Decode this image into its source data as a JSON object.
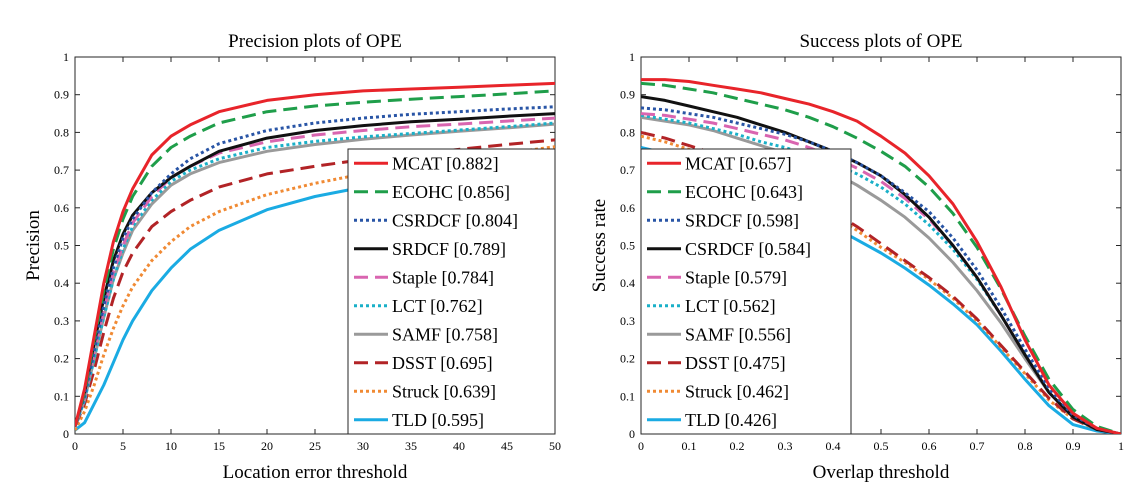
{
  "chart_data": [
    {
      "type": "line",
      "title": "Precision plots of OPE",
      "xlabel": "Location error threshold",
      "ylabel": "Precision",
      "xlim": [
        0,
        50
      ],
      "ylim": [
        0,
        1
      ],
      "xticks": [
        "0",
        "5",
        "10",
        "15",
        "20",
        "25",
        "30",
        "35",
        "40",
        "45",
        "50"
      ],
      "yticks": [
        "0",
        "0.1",
        "0.2",
        "0.3",
        "0.4",
        "0.5",
        "0.6",
        "0.7",
        "0.8",
        "0.9",
        "1"
      ],
      "legend_position": "bottom-right",
      "x": [
        0,
        1,
        2,
        3,
        4,
        5,
        6,
        8,
        10,
        12,
        15,
        20,
        25,
        30,
        35,
        40,
        45,
        50
      ],
      "series": [
        {
          "name": "MCAT",
          "label": "MCAT [0.882]",
          "color": "#e8242a",
          "dash": "solid",
          "values": [
            0.02,
            0.12,
            0.26,
            0.4,
            0.51,
            0.59,
            0.65,
            0.74,
            0.79,
            0.82,
            0.855,
            0.885,
            0.9,
            0.91,
            0.915,
            0.92,
            0.925,
            0.93
          ]
        },
        {
          "name": "ECOHC",
          "label": "ECOHC [0.856]",
          "color": "#1f9e4a",
          "dash": "dashed",
          "values": [
            0.02,
            0.11,
            0.25,
            0.38,
            0.49,
            0.57,
            0.63,
            0.71,
            0.76,
            0.79,
            0.825,
            0.855,
            0.87,
            0.88,
            0.888,
            0.895,
            0.902,
            0.91
          ]
        },
        {
          "name": "CSRDCF",
          "label": "CSRDCF [0.804]",
          "color": "#2955a6",
          "dash": "dotted",
          "values": [
            0.02,
            0.1,
            0.22,
            0.34,
            0.44,
            0.52,
            0.57,
            0.64,
            0.69,
            0.73,
            0.77,
            0.805,
            0.825,
            0.838,
            0.848,
            0.855,
            0.862,
            0.868
          ]
        },
        {
          "name": "SRDCF",
          "label": "SRDCF [0.789]",
          "color": "#111111",
          "dash": "solid",
          "values": [
            0.02,
            0.11,
            0.24,
            0.36,
            0.46,
            0.53,
            0.58,
            0.64,
            0.68,
            0.71,
            0.75,
            0.785,
            0.805,
            0.818,
            0.828,
            0.835,
            0.843,
            0.85
          ]
        },
        {
          "name": "Staple",
          "label": "Staple [0.784]",
          "color": "#d965b0",
          "dash": "dashed",
          "values": [
            0.02,
            0.1,
            0.22,
            0.33,
            0.43,
            0.5,
            0.56,
            0.63,
            0.68,
            0.71,
            0.745,
            0.775,
            0.793,
            0.805,
            0.815,
            0.822,
            0.83,
            0.838
          ]
        },
        {
          "name": "LCT",
          "label": "LCT [0.762]",
          "color": "#1ab0c8",
          "dash": "dotted",
          "values": [
            0.02,
            0.09,
            0.2,
            0.31,
            0.41,
            0.49,
            0.55,
            0.62,
            0.67,
            0.7,
            0.73,
            0.76,
            0.776,
            0.788,
            0.797,
            0.806,
            0.815,
            0.825
          ]
        },
        {
          "name": "SAMF",
          "label": "SAMF [0.758]",
          "color": "#9a9a9a",
          "dash": "solid",
          "values": [
            0.02,
            0.09,
            0.2,
            0.31,
            0.41,
            0.48,
            0.54,
            0.61,
            0.66,
            0.69,
            0.72,
            0.75,
            0.768,
            0.782,
            0.793,
            0.803,
            0.812,
            0.822
          ]
        },
        {
          "name": "DSST",
          "label": "DSST [0.695]",
          "color": "#b22326",
          "dash": "dashed",
          "values": [
            0.02,
            0.08,
            0.17,
            0.27,
            0.36,
            0.43,
            0.48,
            0.55,
            0.59,
            0.62,
            0.655,
            0.69,
            0.71,
            0.728,
            0.742,
            0.755,
            0.768,
            0.78
          ]
        },
        {
          "name": "Struck",
          "label": "Struck [0.639]",
          "color": "#f08a34",
          "dash": "dotted",
          "values": [
            0.01,
            0.06,
            0.13,
            0.21,
            0.28,
            0.34,
            0.39,
            0.46,
            0.51,
            0.55,
            0.59,
            0.635,
            0.665,
            0.69,
            0.71,
            0.728,
            0.745,
            0.762
          ]
        },
        {
          "name": "TLD",
          "label": "TLD [0.595]",
          "color": "#1aabe3",
          "dash": "solid",
          "values": [
            0.01,
            0.03,
            0.08,
            0.13,
            0.19,
            0.25,
            0.3,
            0.38,
            0.44,
            0.49,
            0.54,
            0.595,
            0.63,
            0.655,
            0.675,
            0.69,
            0.705,
            0.72
          ]
        }
      ]
    },
    {
      "type": "line",
      "title": "Success plots of OPE",
      "xlabel": "Overlap threshold",
      "ylabel": "Success rate",
      "xlim": [
        0,
        1
      ],
      "ylim": [
        0,
        1
      ],
      "xticks": [
        "0",
        "0.1",
        "0.2",
        "0.3",
        "0.4",
        "0.5",
        "0.6",
        "0.7",
        "0.8",
        "0.9",
        "1"
      ],
      "yticks": [
        "0",
        "0.1",
        "0.2",
        "0.3",
        "0.4",
        "0.5",
        "0.6",
        "0.7",
        "0.8",
        "0.9",
        "1"
      ],
      "legend_position": "bottom-left",
      "x": [
        0,
        0.05,
        0.1,
        0.15,
        0.2,
        0.25,
        0.3,
        0.35,
        0.4,
        0.45,
        0.5,
        0.55,
        0.6,
        0.65,
        0.7,
        0.75,
        0.8,
        0.85,
        0.9,
        0.95,
        1
      ],
      "series": [
        {
          "name": "MCAT",
          "label": "MCAT [0.657]",
          "color": "#e8242a",
          "dash": "solid",
          "values": [
            0.94,
            0.94,
            0.935,
            0.925,
            0.915,
            0.905,
            0.89,
            0.875,
            0.855,
            0.83,
            0.79,
            0.745,
            0.685,
            0.61,
            0.51,
            0.39,
            0.25,
            0.13,
            0.055,
            0.015,
            0.0
          ]
        },
        {
          "name": "ECOHC",
          "label": "ECOHC [0.643]",
          "color": "#1f9e4a",
          "dash": "dashed",
          "values": [
            0.93,
            0.925,
            0.915,
            0.905,
            0.89,
            0.875,
            0.86,
            0.84,
            0.815,
            0.785,
            0.75,
            0.71,
            0.655,
            0.585,
            0.495,
            0.385,
            0.26,
            0.145,
            0.065,
            0.02,
            0.0
          ]
        },
        {
          "name": "SRDCF",
          "label": "SRDCF [0.598]",
          "color": "#2955a6",
          "dash": "dotted",
          "values": [
            0.865,
            0.86,
            0.85,
            0.84,
            0.825,
            0.81,
            0.795,
            0.775,
            0.75,
            0.72,
            0.685,
            0.64,
            0.59,
            0.52,
            0.435,
            0.335,
            0.225,
            0.12,
            0.05,
            0.015,
            0.0
          ]
        },
        {
          "name": "CSRDCF",
          "label": "CSRDCF [0.584]",
          "color": "#111111",
          "dash": "solid",
          "values": [
            0.895,
            0.885,
            0.87,
            0.855,
            0.84,
            0.82,
            0.8,
            0.775,
            0.75,
            0.72,
            0.685,
            0.635,
            0.575,
            0.5,
            0.415,
            0.315,
            0.21,
            0.11,
            0.045,
            0.012,
            0.0
          ]
        },
        {
          "name": "Staple",
          "label": "Staple [0.579]",
          "color": "#d965b0",
          "dash": "dashed",
          "values": [
            0.85,
            0.845,
            0.835,
            0.825,
            0.81,
            0.795,
            0.78,
            0.76,
            0.735,
            0.705,
            0.67,
            0.625,
            0.57,
            0.5,
            0.415,
            0.315,
            0.21,
            0.11,
            0.045,
            0.012,
            0.0
          ]
        },
        {
          "name": "LCT",
          "label": "LCT [0.562]",
          "color": "#1ab0c8",
          "dash": "dotted",
          "values": [
            0.845,
            0.835,
            0.825,
            0.81,
            0.795,
            0.775,
            0.76,
            0.74,
            0.715,
            0.69,
            0.655,
            0.61,
            0.555,
            0.49,
            0.41,
            0.315,
            0.21,
            0.11,
            0.045,
            0.012,
            0.0
          ]
        },
        {
          "name": "SAMF",
          "label": "SAMF [0.556]",
          "color": "#9a9a9a",
          "dash": "solid",
          "values": [
            0.84,
            0.83,
            0.82,
            0.805,
            0.785,
            0.765,
            0.745,
            0.72,
            0.695,
            0.66,
            0.62,
            0.575,
            0.52,
            0.455,
            0.38,
            0.295,
            0.2,
            0.11,
            0.045,
            0.012,
            0.0
          ]
        },
        {
          "name": "DSST",
          "label": "DSST [0.475]",
          "color": "#b22326",
          "dash": "dashed",
          "values": [
            0.8,
            0.785,
            0.765,
            0.745,
            0.72,
            0.695,
            0.665,
            0.63,
            0.59,
            0.55,
            0.505,
            0.46,
            0.415,
            0.365,
            0.305,
            0.235,
            0.165,
            0.095,
            0.04,
            0.012,
            0.0
          ]
        },
        {
          "name": "Struck",
          "label": "Struck [0.462]",
          "color": "#f08a34",
          "dash": "dotted",
          "values": [
            0.79,
            0.775,
            0.755,
            0.735,
            0.705,
            0.675,
            0.645,
            0.615,
            0.58,
            0.54,
            0.495,
            0.455,
            0.41,
            0.36,
            0.3,
            0.23,
            0.16,
            0.09,
            0.04,
            0.012,
            0.0
          ]
        },
        {
          "name": "TLD",
          "label": "TLD [0.426]",
          "color": "#1aabe3",
          "dash": "solid",
          "values": [
            0.76,
            0.745,
            0.725,
            0.705,
            0.68,
            0.65,
            0.62,
            0.585,
            0.55,
            0.515,
            0.48,
            0.44,
            0.395,
            0.345,
            0.29,
            0.22,
            0.145,
            0.075,
            0.025,
            0.008,
            0.0
          ]
        }
      ]
    }
  ]
}
